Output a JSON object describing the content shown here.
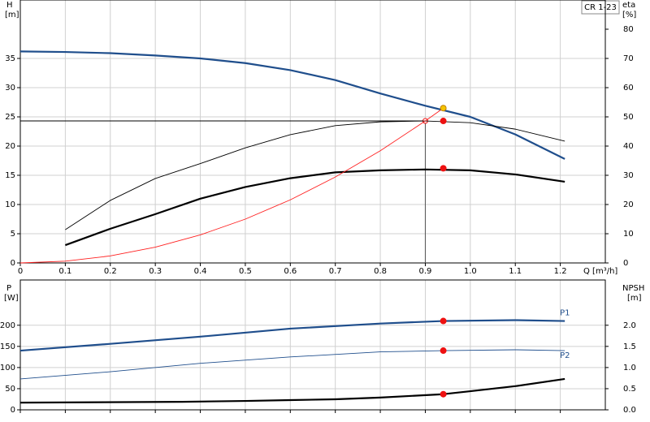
{
  "chart_data": [
    {
      "type": "line",
      "title": "CR 1-23",
      "y_label": [
        "H",
        "[m]"
      ],
      "y2_label": [
        "eta",
        "[%]"
      ],
      "x_label": "Q [m³/h]",
      "xlim": [
        0,
        1.3
      ],
      "xticks": [
        0,
        0.1,
        0.2,
        0.3,
        0.4,
        0.5,
        0.6,
        0.7,
        0.8,
        0.9,
        {
          "value": 1,
          "label": "1.0"
        },
        1.1,
        1.2
      ],
      "ylim": [
        0,
        45
      ],
      "yticks": [
        0,
        5,
        10,
        15,
        20,
        25,
        30,
        35
      ],
      "y2lim": [
        0,
        90
      ],
      "y2ticks": [
        0,
        10,
        20,
        30,
        40,
        50,
        60,
        70,
        80
      ],
      "grid": true,
      "xtick_labels": true,
      "series": [
        {
          "color": "#1f4e8c",
          "style": "thick",
          "axis": "y",
          "x": [
            0,
            0.1,
            0.2,
            0.3,
            0.4,
            0.5,
            0.6,
            0.7,
            0.8,
            0.9,
            1.0,
            1.1,
            1.21
          ],
          "values": [
            36.2,
            36.1,
            35.9,
            35.5,
            35,
            34.2,
            33,
            31.3,
            29,
            26.9,
            25,
            22,
            17.8
          ]
        },
        {
          "color": "#000000",
          "style": "thin",
          "axis": "y2",
          "x": [
            0.1,
            0.2,
            0.3,
            0.4,
            0.5,
            0.6,
            0.7,
            0.8,
            0.9,
            1.0,
            1.1,
            1.21
          ],
          "values": [
            11.4,
            21.4,
            28.9,
            34,
            39.4,
            43.9,
            47,
            48.3,
            48.6,
            48,
            45.8,
            41.7
          ]
        },
        {
          "color": "#000000",
          "style": "thick",
          "axis": "y2",
          "x": [
            0.1,
            0.2,
            0.3,
            0.4,
            0.5,
            0.6,
            0.7,
            0.8,
            0.9,
            1.0,
            1.1,
            1.21
          ],
          "values": [
            6.1,
            11.7,
            16.7,
            22,
            26,
            29,
            31,
            31.7,
            32,
            31.7,
            30.3,
            27.8
          ]
        },
        {
          "color": "#ff2020",
          "style": "thin",
          "axis": "y",
          "x": [
            0,
            0.1,
            0.2,
            0.3,
            0.4,
            0.5,
            0.6,
            0.7,
            0.8,
            0.9,
            0.94
          ],
          "values": [
            0,
            0.3,
            1.2,
            2.7,
            4.8,
            7.5,
            10.8,
            14.7,
            19.2,
            24.3,
            26.5
          ]
        }
      ],
      "duty_point": {
        "x": 0.9,
        "y": 24.3
      },
      "markers": [
        {
          "x": 0.94,
          "y": 26.5,
          "color": "#f5c400"
        },
        {
          "x": 0.94,
          "y": 24.3,
          "color": "#ee1111"
        },
        {
          "x": 0.94,
          "y": 16.2,
          "color": "#ee1111"
        }
      ]
    },
    {
      "type": "line",
      "y_label": [
        "P",
        "[W]"
      ],
      "y2_label": [
        "NPSH",
        "[m]"
      ],
      "xlim": [
        0,
        1.3
      ],
      "xticks": [
        0,
        0.1,
        0.2,
        0.3,
        0.4,
        0.5,
        0.6,
        0.7,
        0.8,
        0.9,
        1,
        1.1,
        1.2
      ],
      "ylim": [
        0,
        307
      ],
      "yticks": [
        0,
        50,
        100,
        150,
        200
      ],
      "y2lim": [
        0,
        3.07
      ],
      "y2ticks": [
        {
          "value": 0,
          "label": "0.0"
        },
        0.5,
        {
          "value": 1,
          "label": "1.0"
        },
        1.5,
        {
          "value": 2,
          "label": "2.0"
        }
      ],
      "grid": true,
      "xtick_labels": false,
      "series": [
        {
          "name": "P1",
          "color": "#1f4e8c",
          "style": "thick",
          "axis": "y",
          "x": [
            0,
            0.2,
            0.4,
            0.6,
            0.8,
            0.94,
            1.1,
            1.21
          ],
          "values": [
            140,
            156,
            173,
            192,
            204,
            210,
            212,
            210
          ]
        },
        {
          "name": "P2",
          "color": "#1f4e8c",
          "style": "thin",
          "axis": "y",
          "x": [
            0,
            0.2,
            0.4,
            0.6,
            0.8,
            0.94,
            1.1,
            1.21
          ],
          "values": [
            73,
            90,
            110,
            125,
            137,
            140,
            142,
            140
          ]
        },
        {
          "color": "#000000",
          "style": "thick",
          "axis": "y2",
          "x": [
            0,
            0.36,
            0.5,
            0.6,
            0.7,
            0.8,
            0.94,
            1.0,
            1.1,
            1.21
          ],
          "values": [
            0.17,
            0.19,
            0.21,
            0.23,
            0.25,
            0.29,
            0.37,
            0.44,
            0.56,
            0.73
          ]
        }
      ],
      "markers": [
        {
          "x": 0.94,
          "y": 210,
          "color": "#ee1111"
        },
        {
          "x": 0.94,
          "y": 140,
          "color": "#ee1111"
        },
        {
          "x": 0.94,
          "y": 0.37,
          "color": "#ee1111",
          "axis": "y2"
        }
      ]
    }
  ]
}
